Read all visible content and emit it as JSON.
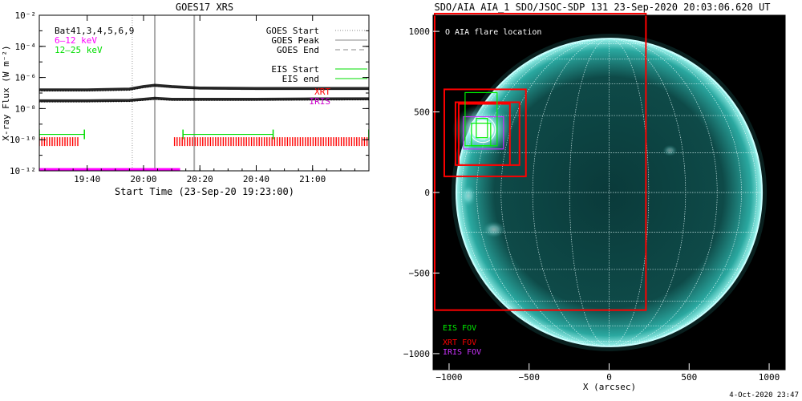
{
  "chart_data": [
    {
      "type": "line",
      "title": "GOES17 XRS",
      "xlabel": "Start Time (23-Sep-20 19:23:00)",
      "ylabel": "X-ray Flux (W m⁻²)",
      "y_scale": "log",
      "ylim": [
        1e-12,
        0.01
      ],
      "xlim": [
        "19:23:00",
        "21:20:00"
      ],
      "x_ticks": [
        "19:40",
        "20:00",
        "20:20",
        "20:40",
        "21:00"
      ],
      "y_ticks": [
        "10⁻²",
        "10⁻⁴",
        "10⁻⁶",
        "10⁻⁸",
        "10⁻¹⁰",
        "10⁻¹²"
      ],
      "grid": false,
      "legend_location": "top-right",
      "left_legend": [
        {
          "label": "Bat41,3,4,5,6,9",
          "color": "#000000"
        },
        {
          "label": "6–12 keV",
          "color": "#ff00ff"
        },
        {
          "label": "12–25 keV",
          "color": "#00dd00"
        }
      ],
      "right_legend": [
        {
          "label": "GOES Start",
          "style": "dotted",
          "color": "#888888"
        },
        {
          "label": "GOES Peak",
          "style": "solid",
          "color": "#888888"
        },
        {
          "label": "GOES End",
          "style": "dashed",
          "color": "#888888"
        },
        {
          "label": "EIS Start",
          "style": "solid",
          "color": "#00dd00"
        },
        {
          "label": "EIS end",
          "style": "solid",
          "color": "#00dd00"
        },
        {
          "label": "XRT",
          "style": "text",
          "color": "#ff0000"
        },
        {
          "label": "IRIS",
          "style": "text",
          "color": "#cc00cc"
        }
      ],
      "series": [
        {
          "channel": "long",
          "color": "#000000",
          "x": [
            "19:23",
            "19:40",
            "19:55",
            "20:00",
            "20:04",
            "20:10",
            "20:20",
            "20:40",
            "21:00",
            "21:20"
          ],
          "y": [
            1.6e-07,
            1.6e-07,
            1.8e-07,
            2.6e-07,
            3.2e-07,
            2.6e-07,
            2.1e-07,
            2e-07,
            2e-07,
            2e-07
          ]
        },
        {
          "channel": "short",
          "color": "#000000",
          "x": [
            "19:23",
            "19:40",
            "19:55",
            "20:00",
            "20:04",
            "20:10",
            "20:20",
            "20:40",
            "21:00",
            "21:20"
          ],
          "y": [
            3.2e-08,
            3.2e-08,
            3.4e-08,
            4e-08,
            4.6e-08,
            4e-08,
            4e-08,
            4e-08,
            4.2e-08,
            4.3e-08
          ]
        }
      ],
      "markers": {
        "goes_start": "19:56",
        "goes_peak": "20:04",
        "goes_end": "20:18"
      },
      "eis_intervals": [
        [
          "19:23",
          "19:39"
        ],
        [
          "20:14",
          "20:46"
        ],
        [
          "21:20",
          "21:20"
        ]
      ],
      "xrt_intervals": [
        [
          "19:23",
          "19:37"
        ],
        [
          "20:11",
          "21:20"
        ]
      ],
      "iris_intervals": [
        [
          "19:23",
          "20:13"
        ]
      ]
    },
    {
      "type": "image",
      "title": "SDO/AIA AIA_1 SDO/JSOC-SDP 131 23-Sep-2020 20:03:06.620 UT",
      "xlabel": "X (arcsec)",
      "ylabel": "",
      "xlim": [
        -1100,
        1100
      ],
      "ylim": [
        -1100,
        1100
      ],
      "x_ticks": [
        -1000,
        -500,
        0,
        500,
        1000
      ],
      "y_ticks": [
        1000,
        500,
        0,
        -500,
        -1000
      ],
      "annotation": "O AIA flare location",
      "timestamp": "4-Oct-2020 23:47",
      "legend": [
        {
          "label": "EIS FOV",
          "color": "#00ee00"
        },
        {
          "label": "XRT FOV",
          "color": "#ff0000"
        },
        {
          "label": "IRIS FOV",
          "color": "#cc33ff"
        }
      ],
      "solar_radius_arcsec": 955,
      "flare_location": [
        -790,
        390
      ],
      "fov_boxes": [
        {
          "kind": "XRT",
          "color": "#ff0000",
          "x": [
            -1090,
            230
          ],
          "y": [
            -730,
            1110
          ]
        },
        {
          "kind": "XRT",
          "color": "#ff0000",
          "x": [
            -1030,
            -520
          ],
          "y": [
            100,
            640
          ]
        },
        {
          "kind": "XRT",
          "color": "#ff0000",
          "x": [
            -960,
            -560
          ],
          "y": [
            170,
            560
          ]
        },
        {
          "kind": "XRT",
          "color": "#ff0000",
          "x": [
            -940,
            -620
          ],
          "y": [
            170,
            550
          ]
        },
        {
          "kind": "IRIS",
          "color": "#cc33ff",
          "x": [
            -910,
            -660
          ],
          "y": [
            270,
            470
          ]
        },
        {
          "kind": "EIS",
          "color": "#00ee00",
          "x": [
            -900,
            -700
          ],
          "y": [
            290,
            620
          ]
        },
        {
          "kind": "EIS",
          "color": "#00ee00",
          "x": [
            -860,
            -740
          ],
          "y": [
            290,
            430
          ]
        },
        {
          "kind": "EIS",
          "color": "#00ee00",
          "x": [
            -830,
            -760
          ],
          "y": [
            340,
            460
          ]
        }
      ]
    }
  ]
}
